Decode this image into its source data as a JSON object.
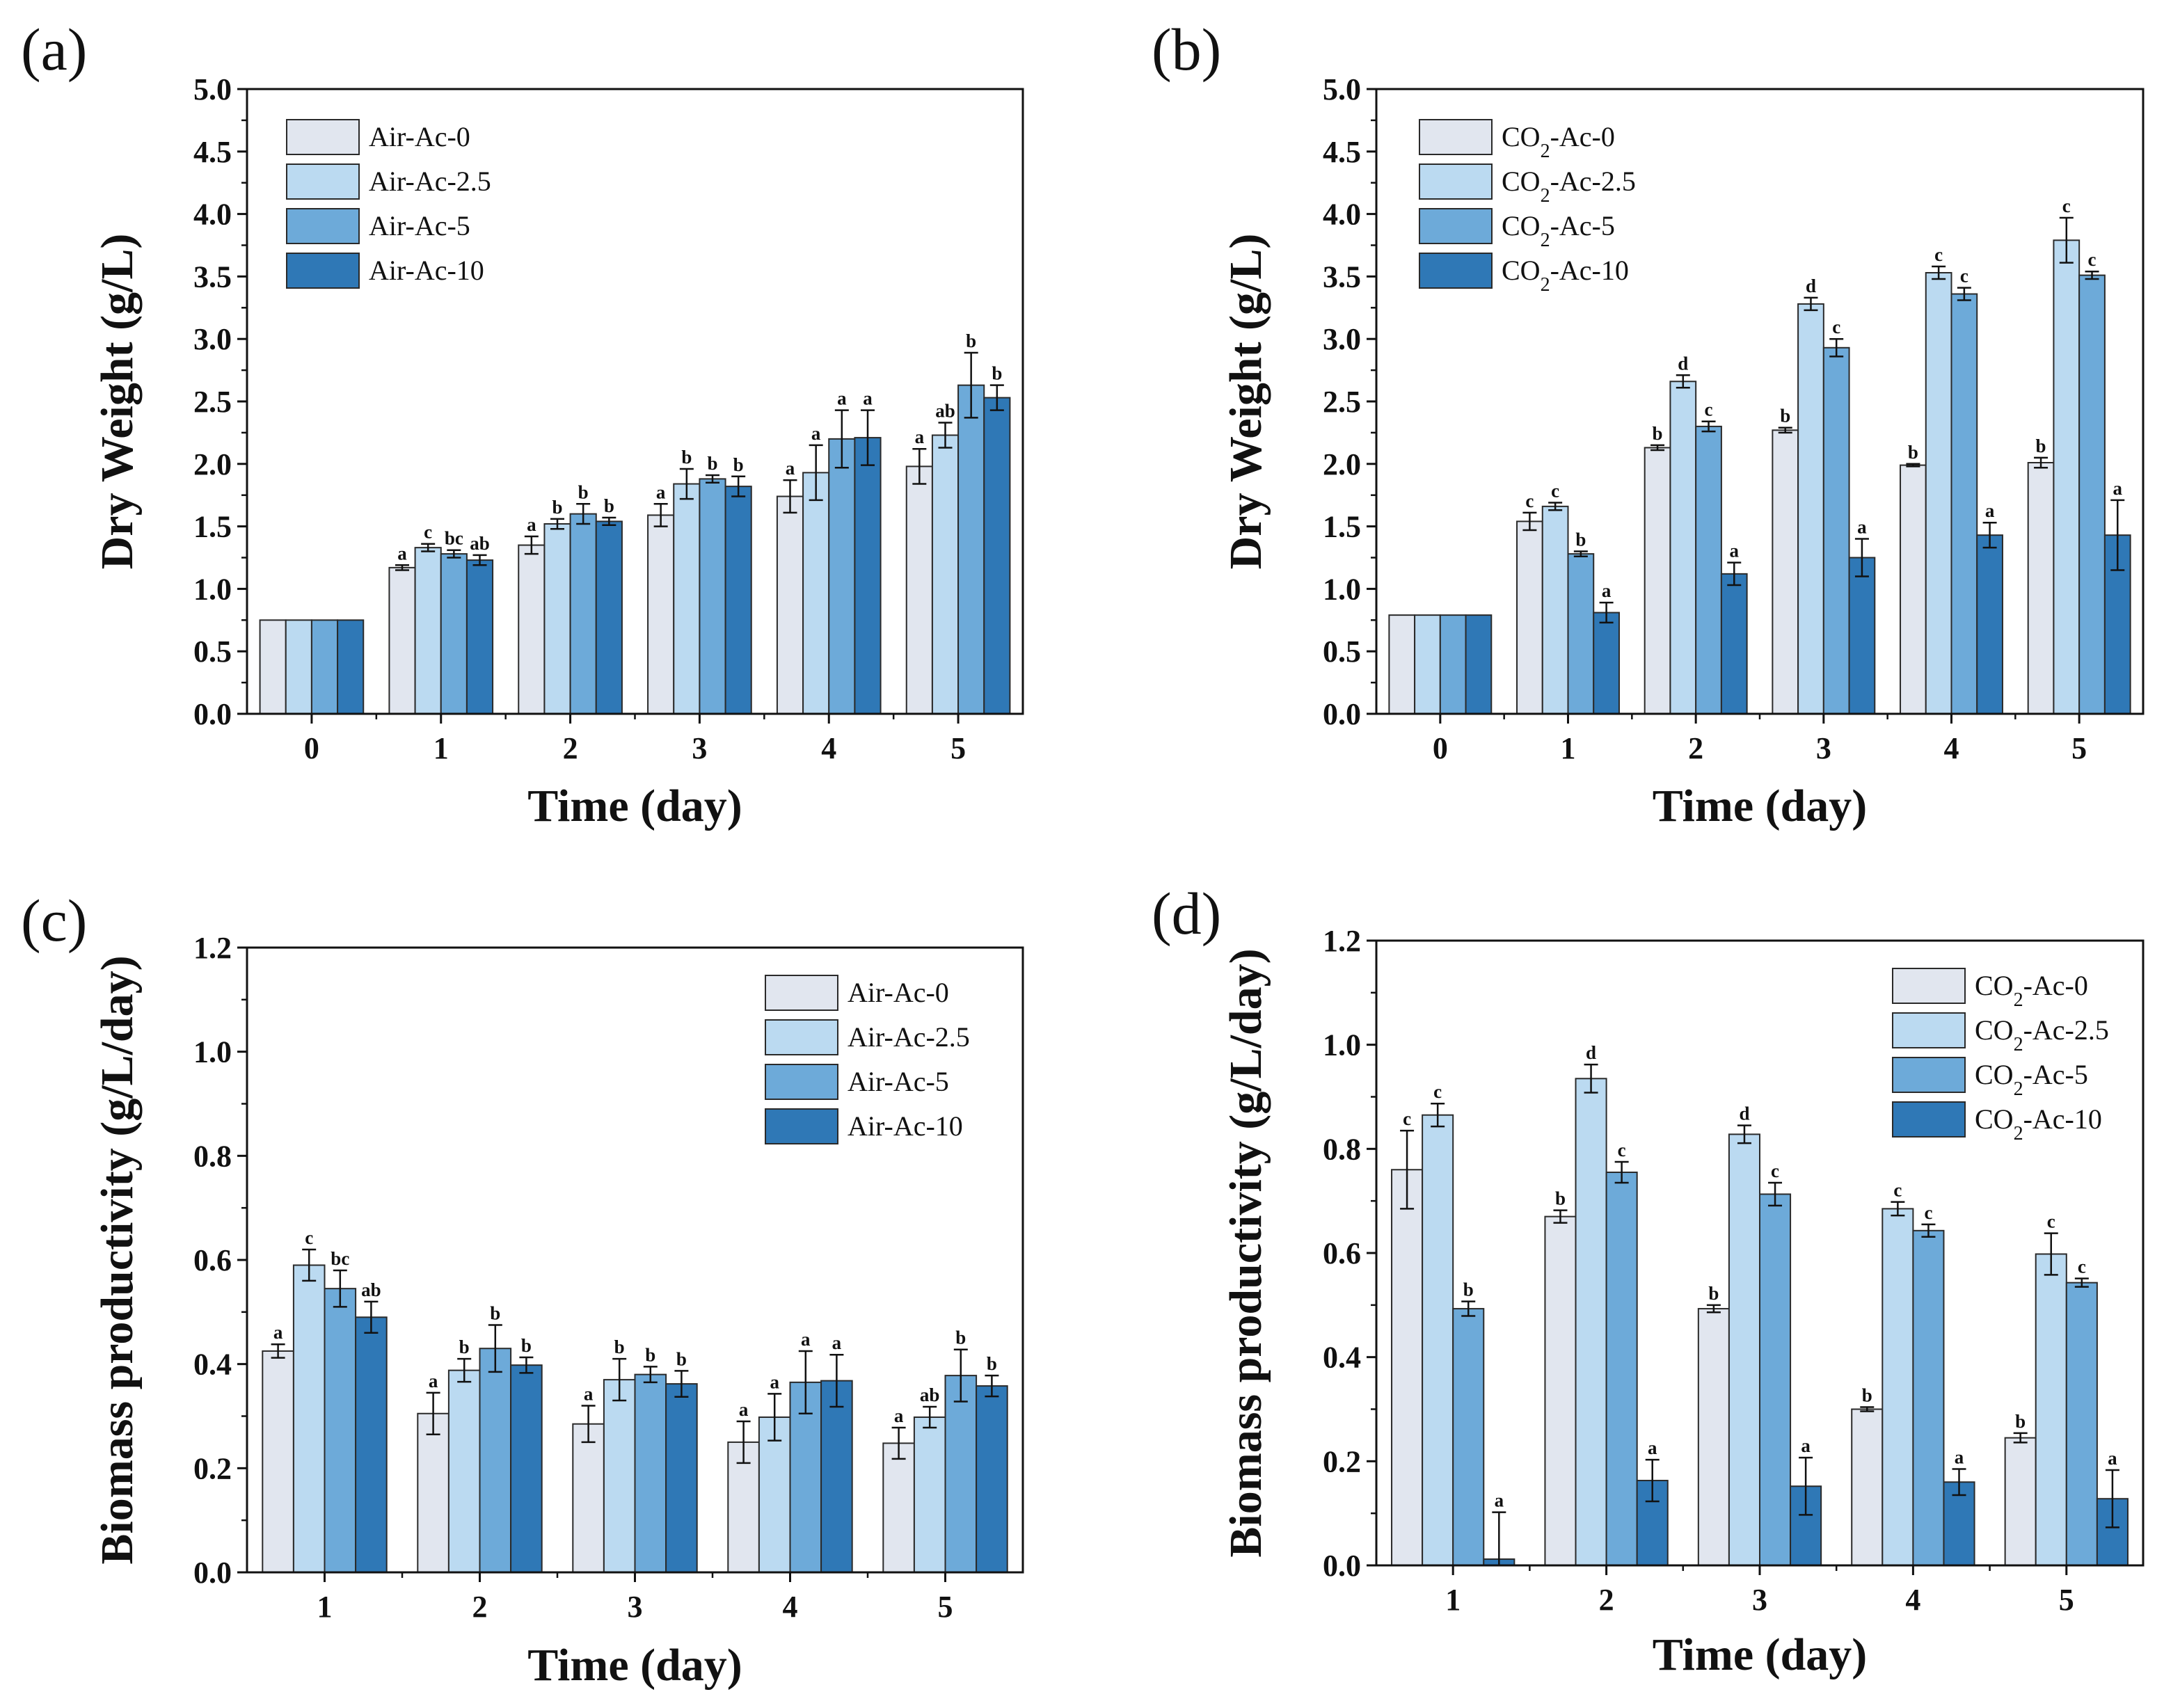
{
  "figure": {
    "colors": [
      "#e1e6ef",
      "#bbdaf1",
      "#6daad9",
      "#2f78b6"
    ],
    "stroke_color": "#2a2a2a"
  },
  "chart_data": [
    {
      "id": "a",
      "panel_label": "(a)",
      "type": "bar",
      "title": "",
      "xlabel": "Time (day)",
      "ylabel": "Dry Weight (g/L)",
      "ylim": [
        0,
        5.0
      ],
      "y_ticks": [
        "0.0",
        "0.5",
        "1.0",
        "1.5",
        "2.0",
        "2.5",
        "3.0",
        "3.5",
        "4.0",
        "4.5",
        "5.0"
      ],
      "categories": [
        "0",
        "1",
        "2",
        "3",
        "4",
        "5"
      ],
      "legend_position": "top-left",
      "series": [
        {
          "name": "Air-Ac-0",
          "values": [
            0.75,
            1.17,
            1.35,
            1.59,
            1.74,
            1.98
          ],
          "errors": [
            0,
            0.02,
            0.07,
            0.09,
            0.13,
            0.14
          ],
          "labels": [
            "",
            "a",
            "a",
            "a",
            "a",
            "a"
          ]
        },
        {
          "name": "Air-Ac-2.5",
          "values": [
            0.75,
            1.33,
            1.52,
            1.84,
            1.93,
            2.23
          ],
          "errors": [
            0,
            0.03,
            0.04,
            0.12,
            0.22,
            0.1
          ],
          "labels": [
            "",
            "c",
            "b",
            "b",
            "a",
            "ab"
          ]
        },
        {
          "name": "Air-Ac-5",
          "values": [
            0.75,
            1.28,
            1.6,
            1.88,
            2.2,
            2.63
          ],
          "errors": [
            0,
            0.03,
            0.08,
            0.03,
            0.23,
            0.26
          ],
          "labels": [
            "",
            "bc",
            "b",
            "b",
            "a",
            "b"
          ]
        },
        {
          "name": "Air-Ac-10",
          "values": [
            0.75,
            1.23,
            1.54,
            1.82,
            2.21,
            2.53
          ],
          "errors": [
            0,
            0.04,
            0.03,
            0.08,
            0.22,
            0.1
          ],
          "labels": [
            "",
            "ab",
            "b",
            "b",
            "a",
            "b"
          ]
        }
      ]
    },
    {
      "id": "b",
      "panel_label": "(b)",
      "type": "bar",
      "title": "",
      "xlabel": "Time (day)",
      "ylabel": "Dry Weight (g/L)",
      "ylim": [
        0,
        5.0
      ],
      "y_ticks": [
        "0.0",
        "0.5",
        "1.0",
        "1.5",
        "2.0",
        "2.5",
        "3.0",
        "3.5",
        "4.0",
        "4.5",
        "5.0"
      ],
      "categories": [
        "0",
        "1",
        "2",
        "3",
        "4",
        "5"
      ],
      "legend_position": "top-left",
      "series": [
        {
          "name": "CO2-Ac-0",
          "values": [
            0.79,
            1.54,
            2.13,
            2.27,
            1.99,
            2.01
          ],
          "errors": [
            0,
            0.07,
            0.02,
            0.02,
            0.01,
            0.04
          ],
          "labels": [
            "",
            "c",
            "b",
            "b",
            "b",
            "b"
          ]
        },
        {
          "name": "CO2-Ac-2.5",
          "values": [
            0.79,
            1.66,
            2.66,
            3.28,
            3.53,
            3.79
          ],
          "errors": [
            0,
            0.03,
            0.05,
            0.05,
            0.05,
            0.18
          ],
          "labels": [
            "",
            "c",
            "d",
            "d",
            "c",
            "c"
          ]
        },
        {
          "name": "CO2-Ac-5",
          "values": [
            0.79,
            1.28,
            2.3,
            2.93,
            3.36,
            3.51
          ],
          "errors": [
            0,
            0.02,
            0.04,
            0.07,
            0.05,
            0.03
          ],
          "labels": [
            "",
            "b",
            "c",
            "c",
            "c",
            "c"
          ]
        },
        {
          "name": "CO2-Ac-10",
          "values": [
            0.79,
            0.81,
            1.12,
            1.25,
            1.43,
            1.43
          ],
          "errors": [
            0,
            0.08,
            0.09,
            0.15,
            0.1,
            0.28
          ],
          "labels": [
            "",
            "a",
            "a",
            "a",
            "a",
            "a"
          ]
        }
      ]
    },
    {
      "id": "c",
      "panel_label": "(c)",
      "type": "bar",
      "title": "",
      "xlabel": "Time (day)",
      "ylabel": "Biomass productivity (g/L/day)",
      "ylim": [
        0,
        1.2
      ],
      "y_ticks": [
        "0.0",
        "0.2",
        "0.4",
        "0.6",
        "0.8",
        "1.0",
        "1.2"
      ],
      "categories": [
        "1",
        "2",
        "3",
        "4",
        "5"
      ],
      "legend_position": "top-right",
      "series": [
        {
          "name": "Air-Ac-0",
          "values": [
            0.425,
            0.305,
            0.285,
            0.25,
            0.248
          ],
          "errors": [
            0.013,
            0.04,
            0.035,
            0.04,
            0.03
          ],
          "labels": [
            "a",
            "a",
            "a",
            "a",
            "a"
          ]
        },
        {
          "name": "Air-Ac-2.5",
          "values": [
            0.59,
            0.388,
            0.37,
            0.298,
            0.298
          ],
          "errors": [
            0.03,
            0.022,
            0.04,
            0.045,
            0.02
          ],
          "labels": [
            "c",
            "b",
            "b",
            "a",
            "ab"
          ]
        },
        {
          "name": "Air-Ac-5",
          "values": [
            0.545,
            0.43,
            0.38,
            0.365,
            0.378
          ],
          "errors": [
            0.035,
            0.045,
            0.015,
            0.06,
            0.05
          ],
          "labels": [
            "bc",
            "b",
            "b",
            "a",
            "b"
          ]
        },
        {
          "name": "Air-Ac-10",
          "values": [
            0.49,
            0.398,
            0.362,
            0.368,
            0.358
          ],
          "errors": [
            0.03,
            0.015,
            0.025,
            0.05,
            0.02
          ],
          "labels": [
            "ab",
            "b",
            "b",
            "a",
            "b"
          ]
        }
      ]
    },
    {
      "id": "d",
      "panel_label": "(d)",
      "type": "bar",
      "title": "",
      "xlabel": "Time (day)",
      "ylabel": "Biomass productivity (g/L/day)",
      "ylim": [
        0,
        1.2
      ],
      "y_ticks": [
        "0.0",
        "0.2",
        "0.4",
        "0.6",
        "0.8",
        "1.0",
        "1.2"
      ],
      "categories": [
        "1",
        "2",
        "3",
        "4",
        "5"
      ],
      "legend_position": "top-right",
      "series": [
        {
          "name": "CO2-Ac-0",
          "values": [
            0.76,
            0.67,
            0.493,
            0.3,
            0.245
          ],
          "errors": [
            0.075,
            0.012,
            0.007,
            0.004,
            0.009
          ],
          "labels": [
            "c",
            "b",
            "b",
            "b",
            "b"
          ]
        },
        {
          "name": "CO2-Ac-2.5",
          "values": [
            0.865,
            0.935,
            0.828,
            0.685,
            0.598
          ],
          "errors": [
            0.022,
            0.027,
            0.017,
            0.013,
            0.04
          ],
          "labels": [
            "c",
            "d",
            "d",
            "c",
            "c"
          ]
        },
        {
          "name": "CO2-Ac-5",
          "values": [
            0.493,
            0.755,
            0.713,
            0.643,
            0.543
          ],
          "errors": [
            0.014,
            0.02,
            0.022,
            0.012,
            0.008
          ],
          "labels": [
            "b",
            "c",
            "c",
            "c",
            "c"
          ]
        },
        {
          "name": "CO2-Ac-10",
          "values": [
            0.012,
            0.163,
            0.152,
            0.16,
            0.128
          ],
          "errors": [
            0.09,
            0.04,
            0.055,
            0.025,
            0.055
          ],
          "labels": [
            "a",
            "a",
            "a",
            "a",
            "a"
          ]
        }
      ]
    }
  ]
}
